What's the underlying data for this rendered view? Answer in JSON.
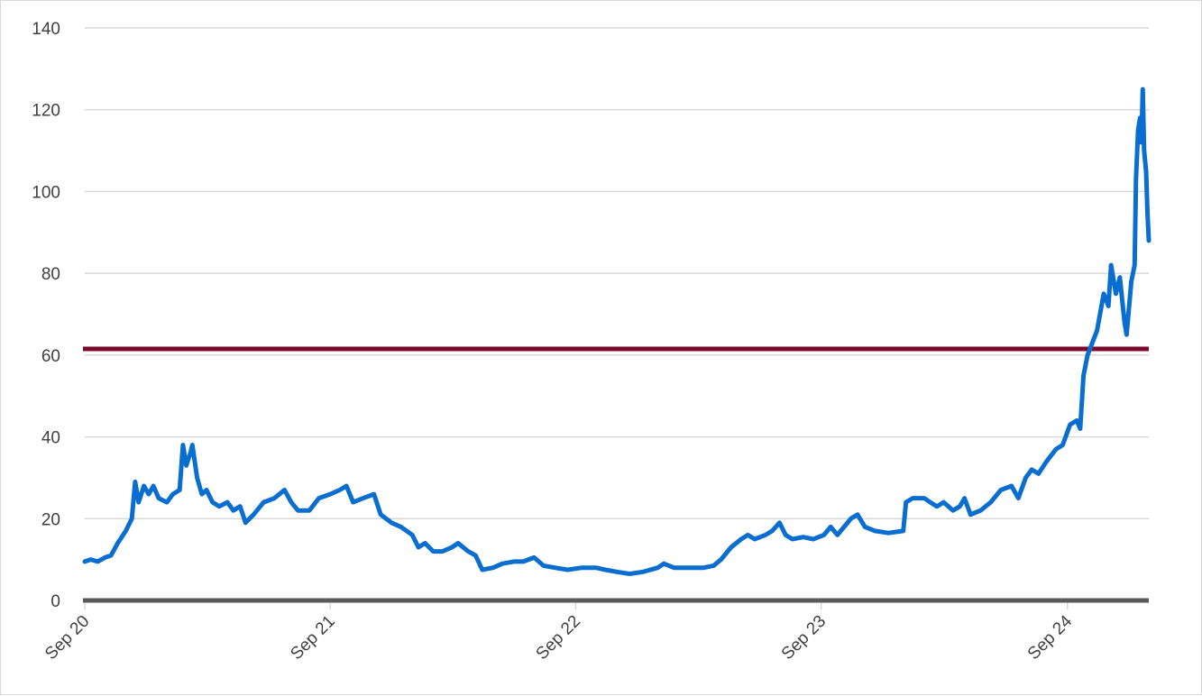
{
  "chart_data": {
    "type": "line",
    "title": "",
    "xlabel": "",
    "ylabel": "",
    "ylim": [
      0,
      140
    ],
    "xlim": [
      "2020-09-01",
      "2024-12-31"
    ],
    "yticks": [
      0,
      20,
      40,
      60,
      80,
      100,
      120,
      140
    ],
    "xticks": [
      {
        "label": "Sep 20",
        "date": "2020-09-01"
      },
      {
        "label": "Sep 21",
        "date": "2021-09-01"
      },
      {
        "label": "Sep 22",
        "date": "2022-09-01"
      },
      {
        "label": "Sep 23",
        "date": "2023-09-01"
      },
      {
        "label": "Sep 24",
        "date": "2024-09-01"
      }
    ],
    "grid": true,
    "legend": "none",
    "series": [
      {
        "color": "#0a6ed1",
        "points": [
          [
            "2020-09-01",
            9.5
          ],
          [
            "2020-09-10",
            10
          ],
          [
            "2020-09-20",
            9.5
          ],
          [
            "2020-10-01",
            10.5
          ],
          [
            "2020-10-10",
            11
          ],
          [
            "2020-10-20",
            14
          ],
          [
            "2020-11-01",
            17
          ],
          [
            "2020-11-10",
            20
          ],
          [
            "2020-11-15",
            29
          ],
          [
            "2020-11-20",
            24
          ],
          [
            "2020-11-28",
            28
          ],
          [
            "2020-12-05",
            26
          ],
          [
            "2020-12-12",
            28
          ],
          [
            "2020-12-20",
            25
          ],
          [
            "2021-01-01",
            24
          ],
          [
            "2021-01-10",
            26
          ],
          [
            "2021-01-20",
            27
          ],
          [
            "2021-01-25",
            38
          ],
          [
            "2021-01-30",
            33
          ],
          [
            "2021-02-05",
            36
          ],
          [
            "2021-02-08",
            38
          ],
          [
            "2021-02-15",
            30
          ],
          [
            "2021-02-22",
            26
          ],
          [
            "2021-03-01",
            27
          ],
          [
            "2021-03-10",
            24
          ],
          [
            "2021-03-20",
            23
          ],
          [
            "2021-04-01",
            24
          ],
          [
            "2021-04-10",
            22
          ],
          [
            "2021-04-20",
            23
          ],
          [
            "2021-04-28",
            19
          ],
          [
            "2021-05-10",
            21
          ],
          [
            "2021-05-25",
            24
          ],
          [
            "2021-06-10",
            25
          ],
          [
            "2021-06-25",
            27
          ],
          [
            "2021-07-05",
            24
          ],
          [
            "2021-07-15",
            22
          ],
          [
            "2021-08-01",
            22
          ],
          [
            "2021-08-15",
            25
          ],
          [
            "2021-09-01",
            26
          ],
          [
            "2021-09-15",
            27
          ],
          [
            "2021-09-25",
            28
          ],
          [
            "2021-10-05",
            24
          ],
          [
            "2021-10-20",
            25
          ],
          [
            "2021-11-05",
            26
          ],
          [
            "2021-11-15",
            21
          ],
          [
            "2021-12-01",
            19
          ],
          [
            "2021-12-15",
            18
          ],
          [
            "2022-01-01",
            16
          ],
          [
            "2022-01-10",
            13
          ],
          [
            "2022-01-20",
            14
          ],
          [
            "2022-02-01",
            12
          ],
          [
            "2022-02-15",
            12
          ],
          [
            "2022-03-01",
            13
          ],
          [
            "2022-03-10",
            14
          ],
          [
            "2022-03-25",
            12
          ],
          [
            "2022-04-05",
            11
          ],
          [
            "2022-04-15",
            7.5
          ],
          [
            "2022-05-01",
            8
          ],
          [
            "2022-05-15",
            9
          ],
          [
            "2022-06-01",
            9.5
          ],
          [
            "2022-06-15",
            9.5
          ],
          [
            "2022-07-01",
            10.5
          ],
          [
            "2022-07-15",
            8.5
          ],
          [
            "2022-08-01",
            8
          ],
          [
            "2022-08-20",
            7.5
          ],
          [
            "2022-09-10",
            8
          ],
          [
            "2022-10-01",
            8
          ],
          [
            "2022-10-15",
            7.5
          ],
          [
            "2022-11-01",
            7
          ],
          [
            "2022-11-20",
            6.5
          ],
          [
            "2022-12-10",
            7
          ],
          [
            "2023-01-01",
            8
          ],
          [
            "2023-01-10",
            9
          ],
          [
            "2023-01-25",
            8
          ],
          [
            "2023-02-15",
            8
          ],
          [
            "2023-03-10",
            8
          ],
          [
            "2023-03-25",
            8.5
          ],
          [
            "2023-04-05",
            10
          ],
          [
            "2023-04-20",
            13
          ],
          [
            "2023-05-05",
            15
          ],
          [
            "2023-05-15",
            16
          ],
          [
            "2023-05-25",
            15
          ],
          [
            "2023-06-10",
            16
          ],
          [
            "2023-06-20",
            17
          ],
          [
            "2023-07-01",
            19
          ],
          [
            "2023-07-10",
            16
          ],
          [
            "2023-07-20",
            15
          ],
          [
            "2023-08-05",
            15.5
          ],
          [
            "2023-08-20",
            15
          ],
          [
            "2023-09-05",
            16
          ],
          [
            "2023-09-15",
            18
          ],
          [
            "2023-09-25",
            16
          ],
          [
            "2023-10-05",
            18
          ],
          [
            "2023-10-15",
            20
          ],
          [
            "2023-10-25",
            21
          ],
          [
            "2023-11-05",
            18
          ],
          [
            "2023-11-20",
            17
          ],
          [
            "2023-12-10",
            16.5
          ],
          [
            "2024-01-01",
            17
          ],
          [
            "2024-01-05",
            24
          ],
          [
            "2024-01-15",
            25
          ],
          [
            "2024-02-01",
            25
          ],
          [
            "2024-02-10",
            24
          ],
          [
            "2024-02-20",
            23
          ],
          [
            "2024-03-01",
            24
          ],
          [
            "2024-03-15",
            22
          ],
          [
            "2024-03-25",
            23
          ],
          [
            "2024-04-01",
            25
          ],
          [
            "2024-04-10",
            21
          ],
          [
            "2024-04-25",
            22
          ],
          [
            "2024-05-10",
            24
          ],
          [
            "2024-05-25",
            27
          ],
          [
            "2024-06-10",
            28
          ],
          [
            "2024-06-20",
            25
          ],
          [
            "2024-07-01",
            30
          ],
          [
            "2024-07-10",
            32
          ],
          [
            "2024-07-20",
            31
          ],
          [
            "2024-08-01",
            34
          ],
          [
            "2024-08-15",
            37
          ],
          [
            "2024-08-25",
            38
          ],
          [
            "2024-09-05",
            43
          ],
          [
            "2024-09-15",
            44
          ],
          [
            "2024-09-20",
            42
          ],
          [
            "2024-09-25",
            55
          ],
          [
            "2024-10-01",
            60
          ],
          [
            "2024-10-08",
            63
          ],
          [
            "2024-10-15",
            66
          ],
          [
            "2024-10-25",
            75
          ],
          [
            "2024-11-01",
            72
          ],
          [
            "2024-11-05",
            82
          ],
          [
            "2024-11-12",
            75
          ],
          [
            "2024-11-18",
            79
          ],
          [
            "2024-11-25",
            68
          ],
          [
            "2024-11-28",
            65
          ],
          [
            "2024-12-05",
            78
          ],
          [
            "2024-12-10",
            82
          ],
          [
            "2024-12-12",
            103
          ],
          [
            "2024-12-15",
            115
          ],
          [
            "2024-12-18",
            118
          ],
          [
            "2024-12-20",
            112
          ],
          [
            "2024-12-22",
            125
          ],
          [
            "2024-12-24",
            110
          ],
          [
            "2024-12-27",
            105
          ],
          [
            "2024-12-29",
            95
          ],
          [
            "2024-12-31",
            88
          ]
        ]
      }
    ],
    "reference_lines": [
      {
        "value": 61.5,
        "color": "#7a0a2e"
      },
      {
        "value": 0,
        "color": "#595959"
      }
    ],
    "gridline_color": "#d9d9d9"
  }
}
